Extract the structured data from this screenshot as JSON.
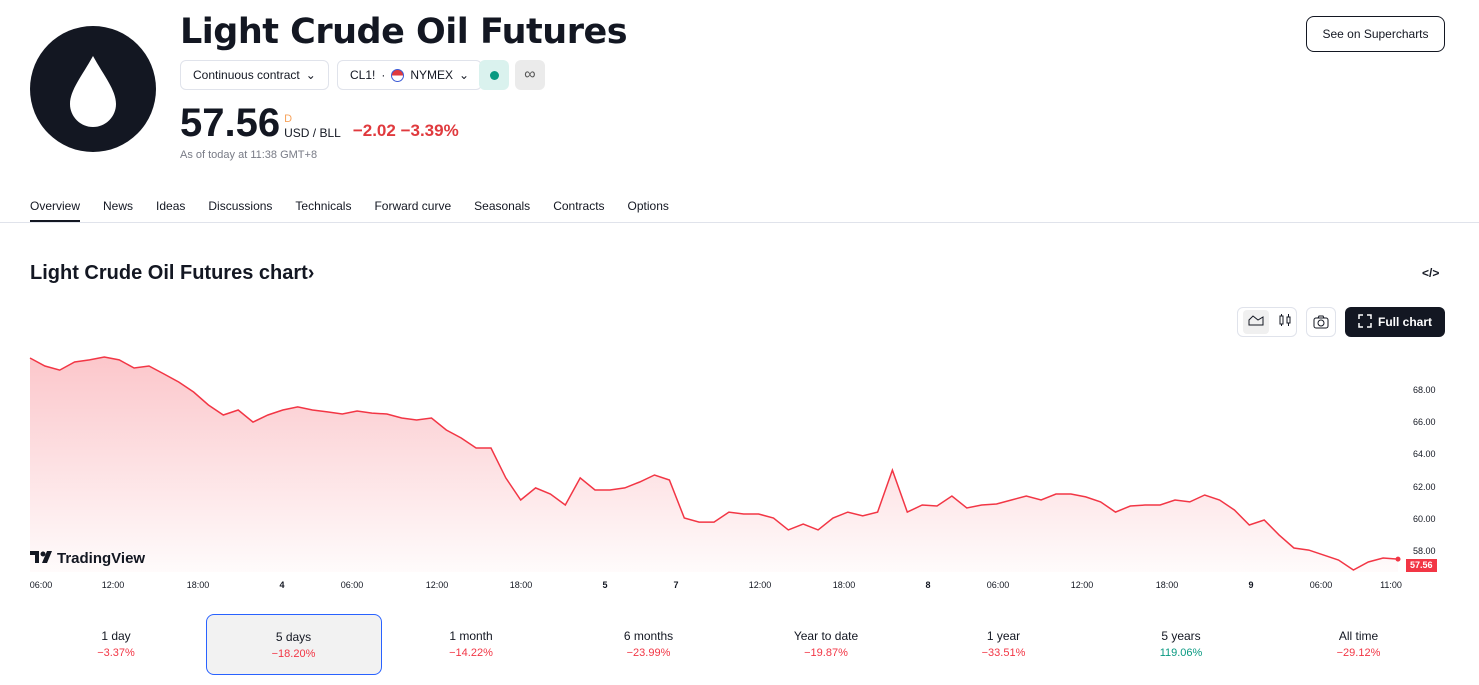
{
  "header": {
    "title": "Light Crude Oil Futures",
    "contract_label": "Continuous contract",
    "symbol": "CL1!",
    "separator": "·",
    "exchange": "NYMEX",
    "price": "57.56",
    "currency_flag": "D",
    "unit": "USD / BLL",
    "change": "−2.02",
    "change_pct": "−3.39%",
    "as_of": "As of today at 11:38 GMT+8",
    "see_supercharts": "See on Supercharts",
    "status_color": "#089981"
  },
  "tabs": [
    "Overview",
    "News",
    "Ideas",
    "Discussions",
    "Technicals",
    "Forward curve",
    "Seasonals",
    "Contracts",
    "Options"
  ],
  "chart_section": {
    "title": "Light Crude Oil Futures chart",
    "chevron": "›",
    "full_chart": "Full chart",
    "watermark": "TradingView",
    "embed_icon": "</>"
  },
  "chart_data": {
    "type": "area",
    "color": "#f23645",
    "y_ticks": [
      "68.00",
      "66.00",
      "64.00",
      "62.00",
      "60.00",
      "58.00"
    ],
    "ylim": [
      56.5,
      70.5
    ],
    "x_ticks": [
      "06:00",
      "12:00",
      "18:00",
      "4",
      "06:00",
      "12:00",
      "18:00",
      "5",
      "7",
      "12:00",
      "18:00",
      "8",
      "06:00",
      "12:00",
      "18:00",
      "9",
      "06:00",
      "11:00"
    ],
    "last_value": "57.56",
    "values": [
      70.05,
      69.55,
      69.3,
      69.8,
      69.93,
      70.11,
      69.93,
      69.43,
      69.55,
      69.06,
      68.56,
      67.94,
      67.13,
      66.51,
      66.82,
      66.07,
      66.51,
      66.82,
      67.01,
      66.82,
      66.7,
      66.57,
      66.76,
      66.63,
      66.57,
      66.32,
      66.2,
      66.32,
      65.58,
      65.08,
      64.46,
      64.46,
      62.6,
      61.23,
      61.98,
      61.6,
      60.92,
      62.6,
      61.85,
      61.85,
      61.98,
      62.35,
      62.78,
      62.47,
      60.11,
      59.86,
      59.86,
      60.48,
      60.36,
      60.36,
      60.11,
      59.37,
      59.74,
      59.37,
      60.11,
      60.48,
      60.24,
      60.48,
      63.09,
      60.48,
      60.92,
      60.86,
      61.48,
      60.73,
      60.92,
      60.98,
      61.23,
      61.48,
      61.23,
      61.6,
      61.6,
      61.42,
      61.11,
      60.48,
      60.86,
      60.92,
      60.92,
      61.23,
      61.11,
      61.54,
      61.23,
      60.61,
      59.68,
      59.99,
      59.06,
      58.25,
      58.12,
      57.81,
      57.5,
      56.88,
      57.38,
      57.63,
      57.56
    ]
  },
  "ranges": [
    {
      "label": "1 day",
      "value": "−3.37%",
      "dir": "down"
    },
    {
      "label": "5 days",
      "value": "−18.20%",
      "dir": "down",
      "selected": true
    },
    {
      "label": "1 month",
      "value": "−14.22%",
      "dir": "down"
    },
    {
      "label": "6 months",
      "value": "−23.99%",
      "dir": "down"
    },
    {
      "label": "Year to date",
      "value": "−19.87%",
      "dir": "down"
    },
    {
      "label": "1 year",
      "value": "−33.51%",
      "dir": "down"
    },
    {
      "label": "5 years",
      "value": "119.06%",
      "dir": "up"
    },
    {
      "label": "All time",
      "value": "−29.12%",
      "dir": "down"
    }
  ]
}
